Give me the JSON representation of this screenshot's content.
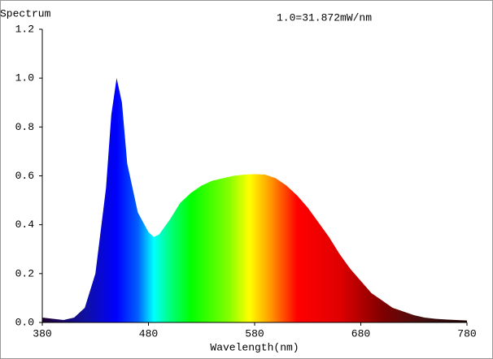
{
  "chart_data": {
    "type": "area",
    "title": "Spectrum",
    "annotation": "1.0=31.872mW/nm",
    "x_label": "Wavelength(nm)",
    "x": [
      380,
      390,
      400,
      410,
      420,
      430,
      440,
      445,
      450,
      455,
      460,
      470,
      480,
      485,
      490,
      500,
      510,
      520,
      530,
      540,
      550,
      560,
      570,
      580,
      590,
      600,
      610,
      620,
      630,
      640,
      650,
      660,
      670,
      680,
      690,
      700,
      710,
      720,
      730,
      740,
      750,
      760,
      770,
      780
    ],
    "values": [
      0.02,
      0.015,
      0.01,
      0.02,
      0.06,
      0.2,
      0.55,
      0.85,
      1.0,
      0.9,
      0.65,
      0.45,
      0.37,
      0.35,
      0.36,
      0.42,
      0.49,
      0.53,
      0.56,
      0.58,
      0.59,
      0.6,
      0.605,
      0.607,
      0.605,
      0.59,
      0.56,
      0.52,
      0.47,
      0.41,
      0.35,
      0.28,
      0.22,
      0.17,
      0.12,
      0.09,
      0.06,
      0.045,
      0.03,
      0.02,
      0.015,
      0.012,
      0.01,
      0.008
    ],
    "xlim": [
      380,
      780
    ],
    "xticks": [
      380,
      480,
      580,
      680,
      780
    ],
    "ylim": [
      0,
      1.2
    ],
    "yticks": [
      {
        "value": 0,
        "label": "0.0"
      },
      0.2,
      0.4,
      0.6,
      0.8,
      {
        "value": 1,
        "label": "1.0"
      },
      1.2
    ],
    "grid": false
  }
}
